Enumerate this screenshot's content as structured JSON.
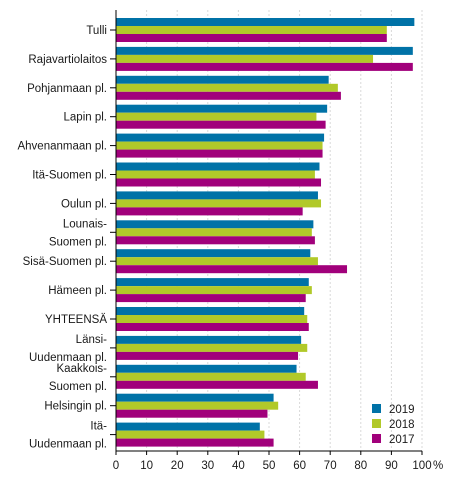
{
  "chart_data": {
    "type": "bar",
    "orientation": "horizontal",
    "title": "",
    "xlabel": "",
    "ylabel": "",
    "x_unit_label": "%",
    "xlim": [
      0,
      100
    ],
    "x_ticks": [
      "0",
      "10",
      "20",
      "30",
      "40",
      "50",
      "60",
      "70",
      "80",
      "90",
      "100"
    ],
    "grid": true,
    "legend_position": "bottom-right",
    "categories": [
      [
        "Tulli"
      ],
      [
        "Rajavartiolaitos"
      ],
      [
        "Pohjanmaan pl."
      ],
      [
        "Lapin pl."
      ],
      [
        "Ahvenanmaan pl."
      ],
      [
        "Itä-Suomen pl."
      ],
      [
        "Oulun pl."
      ],
      [
        "Lounais-",
        "Suomen pl."
      ],
      [
        "Sisä-Suomen pl."
      ],
      [
        "Hämeen pl."
      ],
      [
        "YHTEENSÄ"
      ],
      [
        "Länsi-",
        "Uudenmaan pl."
      ],
      [
        "Kaakkois-",
        "Suomen pl."
      ],
      [
        "Helsingin pl."
      ],
      [
        "Itä-",
        "Uudenmaan pl."
      ]
    ],
    "series": [
      {
        "name": "2019",
        "color": "#0072a7",
        "values": [
          97.5,
          97,
          69.5,
          69,
          68,
          66.5,
          66,
          64.5,
          63.5,
          63,
          61.5,
          60.5,
          59,
          51.5,
          47
        ]
      },
      {
        "name": "2018",
        "color": "#b1c929",
        "values": [
          88.5,
          84,
          72.5,
          65.5,
          67.5,
          65,
          67,
          64,
          66,
          64,
          62.5,
          62.5,
          62,
          53,
          48.5
        ]
      },
      {
        "name": "2017",
        "color": "#a1007b",
        "values": [
          88.5,
          97,
          73.5,
          68.5,
          67.5,
          67,
          61,
          65,
          75.5,
          62,
          63,
          59.5,
          66,
          49.5,
          51.5
        ]
      }
    ]
  }
}
